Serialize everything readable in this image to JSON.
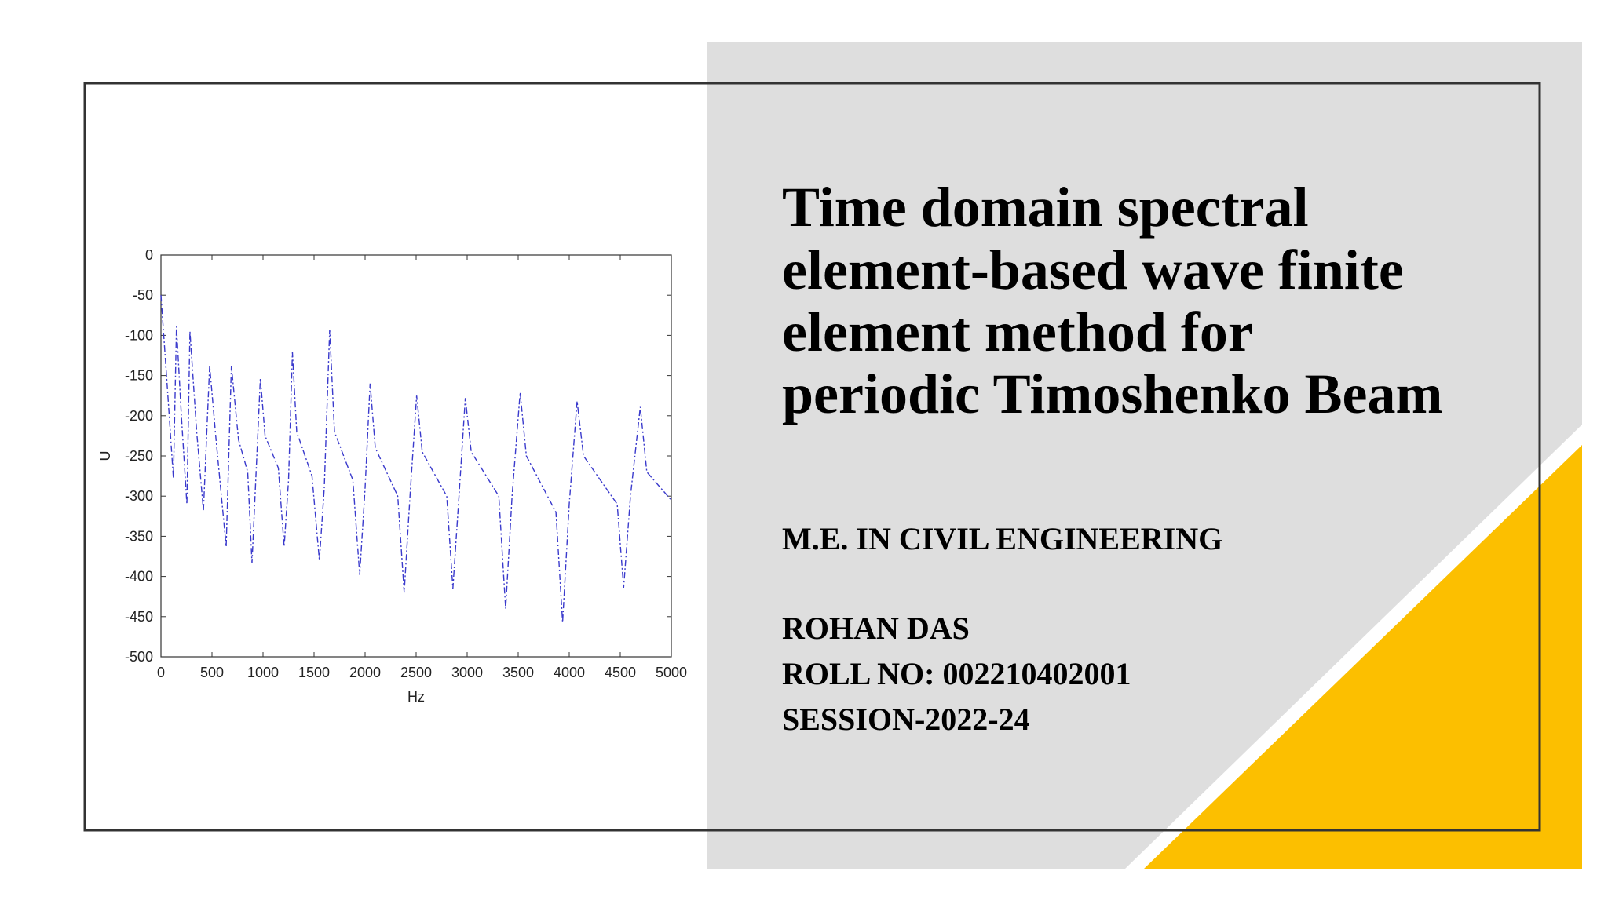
{
  "slide": {
    "title_lines": [
      "Time domain spectral",
      "element-based wave finite",
      "element method for",
      "periodic Timoshenko Beam"
    ],
    "program": "M.E. IN CIVIL ENGINEERING",
    "name": "ROHAN DAS",
    "roll": "ROLL NO: 002210402001",
    "session": "SESSION-2022-24"
  },
  "chart_data": {
    "type": "line",
    "x_label": "Hz",
    "y_label": "U",
    "color": "#3a3acc",
    "line_style": "dashdot",
    "x": [
      0,
      60,
      122,
      152,
      200,
      254,
      284,
      350,
      416,
      477,
      540,
      639,
      690,
      760,
      850,
      892,
      974,
      1020,
      1150,
      1207,
      1250,
      1288,
      1330,
      1480,
      1552,
      1600,
      1653,
      1700,
      1880,
      1947,
      2000,
      2049,
      2100,
      2320,
      2383,
      2440,
      2505,
      2560,
      2800,
      2860,
      2920,
      2982,
      3040,
      3310,
      3377,
      3440,
      3519,
      3580,
      3870,
      3935,
      4000,
      4077,
      4140,
      4470,
      4533,
      4600,
      4696,
      4760,
      5000
    ],
    "values": [
      -50,
      -160,
      -278,
      -89,
      -200,
      -310,
      -95,
      -220,
      -318,
      -138,
      -230,
      -363,
      -138,
      -230,
      -270,
      -383,
      -153,
      -225,
      -265,
      -363,
      -280,
      -121,
      -220,
      -275,
      -380,
      -290,
      -93,
      -220,
      -280,
      -398,
      -290,
      -160,
      -240,
      -300,
      -420,
      -300,
      -175,
      -245,
      -300,
      -415,
      -300,
      -178,
      -245,
      -300,
      -440,
      -300,
      -171,
      -250,
      -320,
      -457,
      -310,
      -182,
      -250,
      -310,
      -414,
      -300,
      -189,
      -270,
      -305
    ],
    "xlim": [
      0,
      5000
    ],
    "ylim": [
      -500,
      0
    ],
    "xticks": [
      0,
      500,
      1000,
      1500,
      2000,
      2500,
      3000,
      3500,
      4000,
      4500,
      5000
    ],
    "yticks": [
      0,
      -50,
      -100,
      -150,
      -200,
      -250,
      -300,
      -350,
      -400,
      -450,
      -500
    ]
  }
}
